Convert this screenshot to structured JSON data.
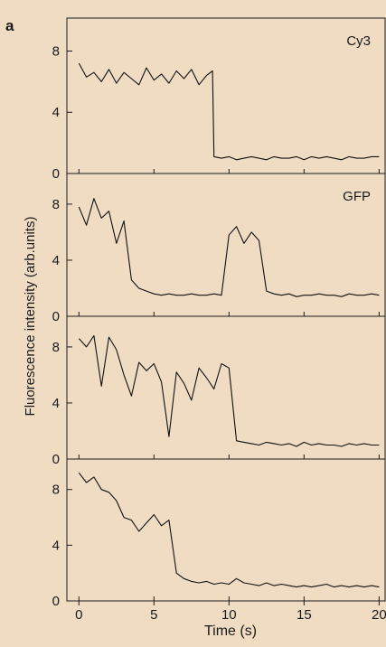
{
  "figure": {
    "panel_letter": "a",
    "ylabel": "Fluorescence intensity (arb.units)",
    "xlabel": "Time (s)",
    "background_color": "#f0dcc2",
    "trace_color": "#111111"
  },
  "chart_data": [
    {
      "type": "line",
      "label": "Cy3",
      "xlim": [
        -0.8,
        20.4
      ],
      "ylim": [
        0,
        9.8
      ],
      "yticks": [
        "0",
        "4",
        "8"
      ],
      "x": [
        0,
        0.5,
        1,
        1.5,
        2,
        2.5,
        3,
        3.5,
        4,
        4.5,
        5,
        5.5,
        6,
        6.5,
        7,
        7.5,
        8,
        8.5,
        8.9,
        9,
        9.5,
        10,
        10.5,
        11,
        11.5,
        12,
        12.5,
        13,
        13.5,
        14,
        14.5,
        15,
        15.5,
        16,
        16.5,
        17,
        17.5,
        18,
        18.5,
        19,
        19.5,
        20
      ],
      "y": [
        7.2,
        6.3,
        6.6,
        6.0,
        6.8,
        5.9,
        6.6,
        6.2,
        5.8,
        6.9,
        6.1,
        6.5,
        5.9,
        6.7,
        6.2,
        6.8,
        5.8,
        6.4,
        6.7,
        1.1,
        1.0,
        1.1,
        0.9,
        1.0,
        1.1,
        1.0,
        0.9,
        1.1,
        1.0,
        1.0,
        1.1,
        0.9,
        1.1,
        1.0,
        1.1,
        1.0,
        0.9,
        1.1,
        1.0,
        1.0,
        1.1,
        1.1
      ]
    },
    {
      "type": "line",
      "label": "GFP",
      "xlim": [
        -0.8,
        20.4
      ],
      "ylim": [
        0,
        9.8
      ],
      "yticks": [
        "0",
        "4",
        "8"
      ],
      "x": [
        0,
        0.5,
        1,
        1.5,
        2,
        2.5,
        3,
        3.5,
        4,
        4.5,
        5,
        5.5,
        6,
        6.5,
        7,
        7.5,
        8,
        8.5,
        9,
        9.5,
        10,
        10.5,
        11,
        11.5,
        12,
        12.5,
        13,
        13.5,
        14,
        14.5,
        15,
        15.5,
        16,
        16.5,
        17,
        17.5,
        18,
        18.5,
        19,
        19.5,
        20
      ],
      "y": [
        7.8,
        6.5,
        8.4,
        7.0,
        7.5,
        5.2,
        6.8,
        2.6,
        2.0,
        1.8,
        1.6,
        1.5,
        1.6,
        1.5,
        1.5,
        1.6,
        1.5,
        1.5,
        1.6,
        1.5,
        5.8,
        6.4,
        5.2,
        6.0,
        5.4,
        1.8,
        1.6,
        1.5,
        1.6,
        1.4,
        1.5,
        1.5,
        1.6,
        1.5,
        1.5,
        1.4,
        1.6,
        1.5,
        1.5,
        1.6,
        1.5
      ]
    },
    {
      "type": "line",
      "label": "",
      "xlim": [
        -0.8,
        20.4
      ],
      "ylim": [
        0,
        9.8
      ],
      "yticks": [
        "0",
        "4",
        "8"
      ],
      "x": [
        0,
        0.5,
        1,
        1.5,
        2,
        2.5,
        3,
        3.5,
        4,
        4.5,
        5,
        5.5,
        6,
        6.5,
        7,
        7.5,
        8,
        8.5,
        9,
        9.5,
        10,
        10.5,
        11,
        11.5,
        12,
        12.5,
        13,
        13.5,
        14,
        14.5,
        15,
        15.5,
        16,
        16.5,
        17,
        17.5,
        18,
        18.5,
        19,
        19.5,
        20
      ],
      "y": [
        8.6,
        8.0,
        8.8,
        5.2,
        8.7,
        7.8,
        6.0,
        4.5,
        6.9,
        6.3,
        6.8,
        5.5,
        1.6,
        6.2,
        5.4,
        4.2,
        6.5,
        5.8,
        5.0,
        6.8,
        6.5,
        1.3,
        1.2,
        1.1,
        1.0,
        1.2,
        1.1,
        1.0,
        1.1,
        0.9,
        1.2,
        1.0,
        1.1,
        1.0,
        1.0,
        0.9,
        1.1,
        1.0,
        1.1,
        1.0,
        1.0
      ]
    },
    {
      "type": "line",
      "label": "",
      "xlim": [
        -0.8,
        20.4
      ],
      "ylim": [
        0,
        9.8
      ],
      "yticks": [
        "0",
        "4",
        "8"
      ],
      "xticks": [
        "0",
        "5",
        "10",
        "15",
        "20"
      ],
      "x": [
        0,
        0.5,
        1,
        1.5,
        2,
        2.5,
        3,
        3.5,
        4,
        4.5,
        5,
        5.5,
        6,
        6.5,
        7,
        7.5,
        8,
        8.5,
        9,
        9.5,
        10,
        10.5,
        11,
        11.5,
        12,
        12.5,
        13,
        13.5,
        14,
        14.5,
        15,
        15.5,
        16,
        16.5,
        17,
        17.5,
        18,
        18.5,
        19,
        19.5,
        20
      ],
      "y": [
        9.2,
        8.5,
        8.9,
        8.0,
        7.8,
        7.2,
        6.0,
        5.8,
        5.0,
        5.6,
        6.2,
        5.4,
        5.8,
        2.0,
        1.6,
        1.4,
        1.3,
        1.4,
        1.2,
        1.3,
        1.2,
        1.6,
        1.3,
        1.2,
        1.1,
        1.3,
        1.1,
        1.2,
        1.1,
        1.0,
        1.1,
        1.0,
        1.1,
        1.2,
        1.0,
        1.1,
        1.0,
        1.1,
        1.0,
        1.1,
        1.0
      ]
    }
  ]
}
